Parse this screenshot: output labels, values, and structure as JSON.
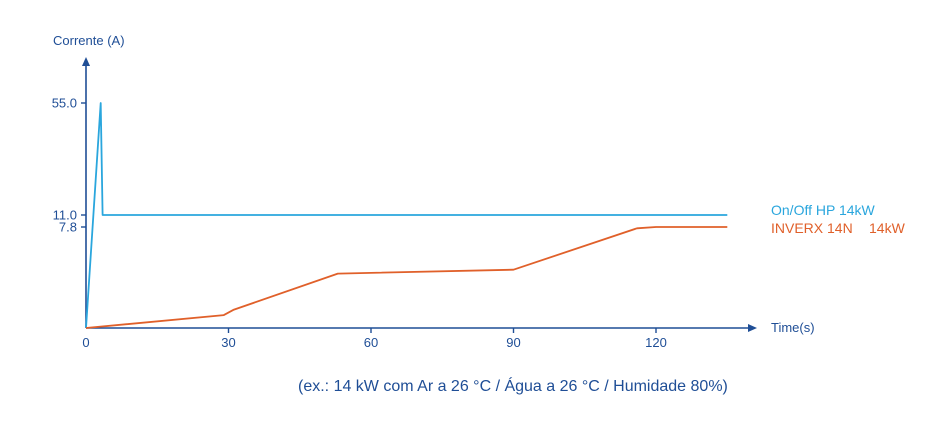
{
  "chart_data": {
    "type": "line",
    "ylabel": "Corrente (A)",
    "xlabel": "Time(s)",
    "x_ticks": [
      0,
      30,
      60,
      90,
      120
    ],
    "y_ticks": [
      {
        "value": 55.0,
        "label": "55.0"
      },
      {
        "value": 11.0,
        "label": "11.0"
      },
      {
        "value": 7.8,
        "label": "7.8"
      }
    ],
    "xlim": [
      0,
      135
    ],
    "series": [
      {
        "name": "On/Off HP 14kW",
        "color": "#2aa6dd",
        "x": [
          0,
          3.1,
          3.5,
          135
        ],
        "y": [
          0,
          55.0,
          11.0,
          11.0
        ]
      },
      {
        "name": "INVERX 14N",
        "name_suffix": "14kW",
        "color": "#e0602a",
        "x": [
          0,
          29,
          31,
          53,
          90,
          116,
          120,
          135
        ],
        "y": [
          0,
          1.0,
          1.4,
          4.2,
          4.5,
          7.7,
          7.8,
          7.8
        ]
      }
    ]
  },
  "footnote": "(ex.: 14 kW com Ar a 26 °C / Água a 26 °C / Humidade 80%)"
}
